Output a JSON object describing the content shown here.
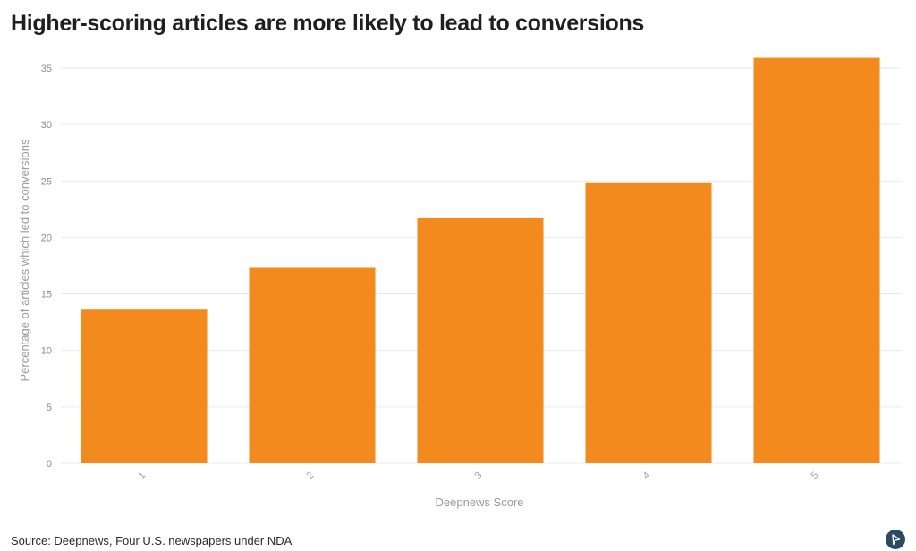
{
  "title": "Higher-scoring articles are more likely to lead to conversions",
  "source": "Source: Deepnews, Four U.S. newspapers under NDA",
  "colors": {
    "bar": "#f28a1e",
    "grid": "#e9e9e9",
    "logo": "#2c4a63"
  },
  "logo_icon": "flourish-logo-icon",
  "chart_data": {
    "type": "bar",
    "categories": [
      "1",
      "2",
      "3",
      "4",
      "5"
    ],
    "values": [
      13.6,
      17.3,
      21.7,
      24.8,
      35.9
    ],
    "xlabel": "Deepnews Score",
    "ylabel": "Percentage of articles which led to conversions",
    "ylim": [
      0,
      36
    ],
    "yticks": [
      0,
      5,
      10,
      15,
      20,
      25,
      30,
      35
    ],
    "grid": true,
    "legend": "none"
  }
}
